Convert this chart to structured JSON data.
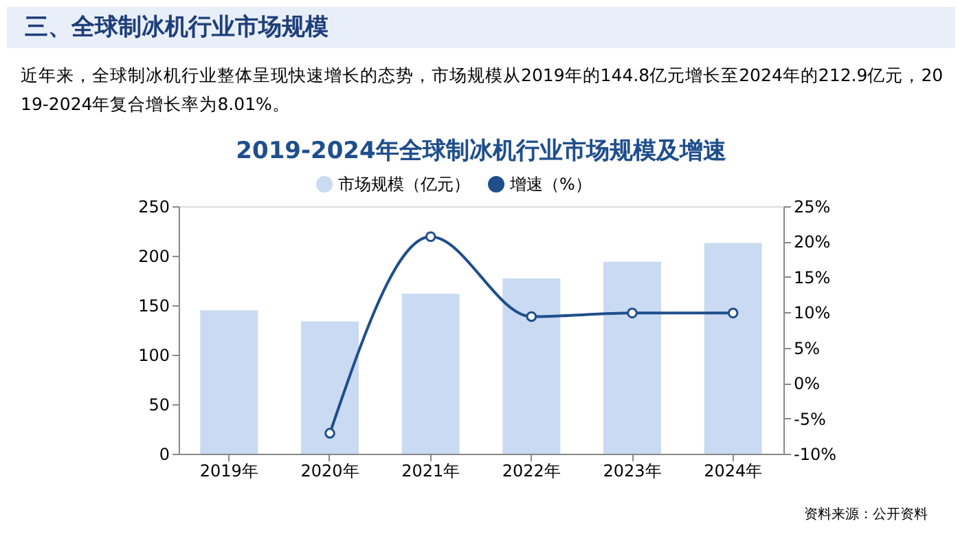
{
  "chart_data": {
    "type": "bar",
    "title": "2019-2024年全球制冰机行业市场规模及增速",
    "subtitle": "近年来，全球制冰机行业整体呈现快速增长的态势，市场规模从2019年的144.8亿元增长至2024年的212.9亿元，2019-2024年复合增长率为8.01%。",
    "annotations": [
      "三、全球制冰机行业市场规模",
      "资料来源：公开资料"
    ],
    "categories": [
      "2019年",
      "2020年",
      "2021年",
      "2022年",
      "2023年",
      "2024年"
    ],
    "series": [
      {
        "name": "市场规模（亿元）",
        "color": "#c9daf2",
        "values": [
          144.8,
          133.7,
          161.7,
          177.0,
          193.9,
          212.9
        ]
      },
      {
        "name": "增速（%）",
        "type": "line",
        "axis": "y2",
        "color": "#1f4e8c",
        "marker": "circle",
        "values": [
          null,
          -7.1,
          20.7,
          9.4,
          9.9,
          9.9
        ]
      }
    ],
    "ylim": [
      0,
      250
    ],
    "yticks": [
      0,
      50,
      100,
      150,
      200,
      250
    ],
    "y2lim": [
      -10,
      25
    ],
    "y2ticks": [
      {
        "value": -10,
        "label": "-10%"
      },
      {
        "value": -5,
        "label": "-5%"
      },
      {
        "value": 0,
        "label": "0%"
      },
      {
        "value": 5,
        "label": "5%"
      },
      {
        "value": 10,
        "label": "10%"
      },
      {
        "value": 15,
        "label": "15%"
      },
      {
        "value": 20,
        "label": "20%"
      },
      {
        "value": 25,
        "label": "25%"
      }
    ],
    "legend": "top",
    "grid": false
  }
}
